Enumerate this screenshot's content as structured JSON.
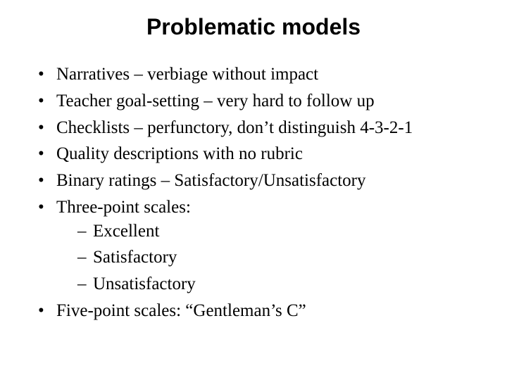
{
  "title": "Problematic models",
  "title_fontsize": 32,
  "body_fontsize": 25,
  "line_height": 1.35,
  "text_color": "#000000",
  "background_color": "#ffffff",
  "bullets": {
    "b0": "Narratives – verbiage without impact",
    "b1": "Teacher goal-setting – very hard to follow up",
    "b2": "Checklists – perfunctory, don’t distinguish 4-3-2-1",
    "b3": "Quality descriptions with no rubric",
    "b4": "Binary ratings – Satisfactory/Unsatisfactory",
    "b5": "Three-point scales:",
    "b5_sub": {
      "s0": "Excellent",
      "s1": "Satisfactory",
      "s2": "Unsatisfactory"
    },
    "b6": "Five-point scales: “Gentleman’s C”"
  }
}
